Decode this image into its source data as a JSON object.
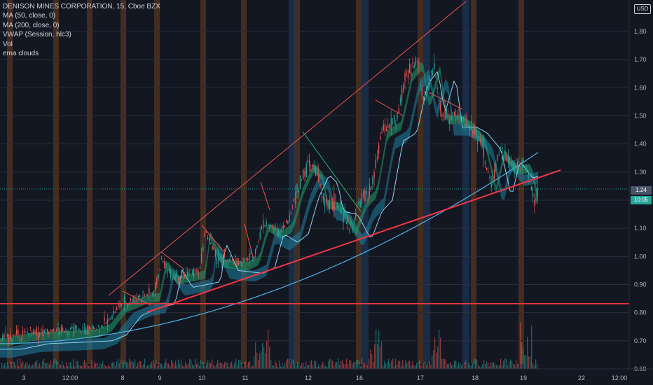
{
  "legend": {
    "title": "DENISON MINES CORPORATION, 15, Cboe BZX",
    "lines": [
      "MA (50, close, 0)",
      "MA (200, close, 0)",
      "VWAP (Session, hlc3)",
      "Vol",
      "ema clouds"
    ]
  },
  "currency_label": "USD",
  "price_tags": {
    "last_price": "1.24",
    "countdown": "10:05"
  },
  "colors": {
    "background": "#131722",
    "axis_text": "#b2b5be",
    "up": "#26a69a",
    "down": "#ef5350",
    "cloud": "#1d7fa0",
    "ma200": "#4fb3e8",
    "support_line": "#f23645",
    "orange_band": "#6b3f1f",
    "blue_band": "#1e3a5f"
  },
  "chart_data": {
    "type": "candlestick",
    "title": "DENISON MINES CORPORATION, 15, Cboe BZX",
    "y_axis": {
      "ticks": [
        "0.60",
        "0.70",
        "0.80",
        "0.90",
        "1.00",
        "1.10",
        "1.20",
        "1.30",
        "1.40",
        "1.50",
        "1.60",
        "1.70",
        "1.80"
      ],
      "range": [
        0.59,
        1.88
      ],
      "unit": "USD"
    },
    "x_axis": {
      "ticks": [
        "3",
        "12:00",
        "8",
        "9",
        "10",
        "11",
        "12",
        "16",
        "17",
        "18",
        "19",
        "22",
        "12:00"
      ]
    },
    "price_path": [
      {
        "t": 3,
        "p": 0.72
      },
      {
        "t": 12,
        "p": 0.74
      },
      {
        "t": 8,
        "p": 0.83
      },
      {
        "t": 9,
        "p": 0.94
      },
      {
        "t": 10,
        "p": 0.99
      },
      {
        "t": 11,
        "p": 1.08
      },
      {
        "t": 12,
        "p": 1.33
      },
      {
        "t": 16,
        "p": 1.17
      },
      {
        "t": 17,
        "p": 1.68
      },
      {
        "t": 17.5,
        "p": 1.5
      },
      {
        "t": 18,
        "p": 1.44
      },
      {
        "t": 19,
        "p": 1.24
      }
    ],
    "horizontal_line": 0.832,
    "last_price": 1.24
  }
}
